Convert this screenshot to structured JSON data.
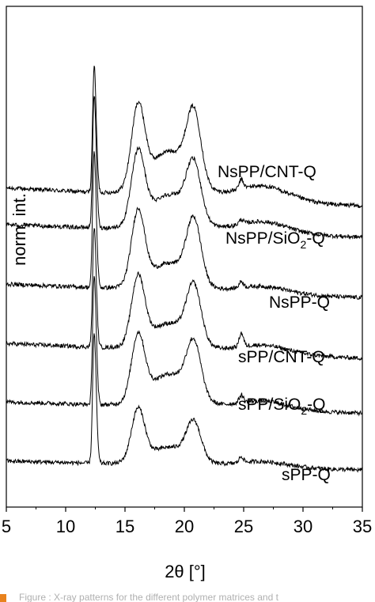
{
  "chart_data": {
    "type": "line",
    "xlabel": "2θ [°]",
    "ylabel": "norm. int.",
    "xlim": [
      5,
      35
    ],
    "x_ticks": [
      "5",
      "10",
      "15",
      "20",
      "25",
      "30",
      "35"
    ],
    "y_ticks": [],
    "grid": false,
    "legend": "none",
    "line_color": "#000000",
    "peaks": [
      {
        "center": 12.4,
        "width": 0.13,
        "tail_width": 0.5
      },
      {
        "center": 16.1,
        "width": 0.55
      },
      {
        "center": 18.8,
        "width": 1.8
      },
      {
        "center": 20.8,
        "width": 0.6
      },
      {
        "center": 24.8,
        "width": 0.18
      },
      {
        "center": 26.5,
        "width": 2.2
      }
    ],
    "series": [
      {
        "name": "NsPP/CNT-Q",
        "baseline_norm": 0.16,
        "amplitudes": [
          0.84,
          0.52,
          0.3,
          0.44,
          0.06,
          0.1
        ]
      },
      {
        "name": "NsPP/SiO2-Q",
        "baseline_norm": 0.11,
        "amplitudes": [
          0.88,
          0.46,
          0.24,
          0.35,
          0.03,
          0.08
        ]
      },
      {
        "name": "NsPP-Q",
        "baseline_norm": 0.12,
        "amplitudes": [
          0.9,
          0.48,
          0.18,
          0.4,
          0.04,
          0.05
        ]
      },
      {
        "name": "sPP/CNT-Q",
        "baseline_norm": 0.13,
        "amplitudes": [
          0.8,
          0.44,
          0.18,
          0.36,
          0.09,
          0.06
        ]
      },
      {
        "name": "sPP/SiO2-Q",
        "baseline_norm": 0.1,
        "amplitudes": [
          0.86,
          0.42,
          0.22,
          0.34,
          0.05,
          0.06
        ]
      },
      {
        "name": "sPP-Q",
        "baseline_norm": 0.08,
        "amplitudes": [
          0.86,
          0.34,
          0.12,
          0.24,
          0.04,
          0.04
        ]
      }
    ],
    "series_labels": [
      {
        "prefix": "NsPP/CNT-Q",
        "sub": "",
        "suffix": ""
      },
      {
        "prefix": "NsPP/SiO",
        "sub": "2",
        "suffix": "-Q"
      },
      {
        "prefix": "NsPP-Q",
        "sub": "",
        "suffix": ""
      },
      {
        "prefix": "sPP/CNT-Q",
        "sub": "",
        "suffix": ""
      },
      {
        "prefix": "sPP/SiO",
        "sub": "2",
        "suffix": "-Q"
      },
      {
        "prefix": "sPP-Q",
        "sub": "",
        "suffix": ""
      }
    ]
  },
  "caption": {
    "text": "Figure : X-ray patterns for the different polymer matrices and t",
    "marker_color": "#e8821e"
  }
}
